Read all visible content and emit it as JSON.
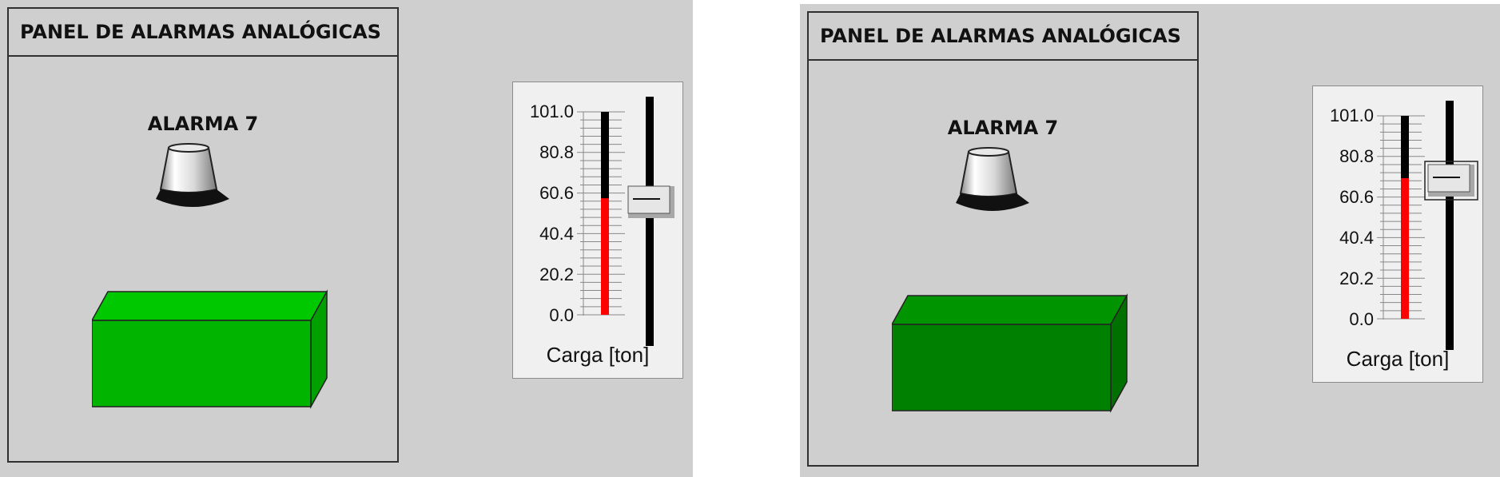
{
  "screens": [
    {
      "panel_title": "PANEL DE ALARMAS ANALÓGICAS",
      "alarm_label": "ALARMA 7",
      "box_color": "#00b400",
      "box_top_color": "#00c800",
      "box_side_color": "#00a000",
      "slider": {
        "ticks": [
          "101.0",
          "80.8",
          "60.6",
          "40.4",
          "20.2",
          "0.0"
        ],
        "caption": "Carga [ton]",
        "min": 0.0,
        "max": 101.0,
        "value": 58,
        "fill_color": "#ff0000",
        "thumb_selected": false
      }
    },
    {
      "panel_title": "PANEL DE ALARMAS ANALÓGICAS",
      "alarm_label": "ALARMA 7",
      "box_color": "#008000",
      "box_top_color": "#009400",
      "box_side_color": "#007000",
      "slider": {
        "ticks": [
          "101.0",
          "80.8",
          "60.6",
          "40.4",
          "20.2",
          "0.0"
        ],
        "caption": "Carga [ton]",
        "min": 0.0,
        "max": 101.0,
        "value": 70,
        "fill_color": "#ff0000",
        "thumb_selected": true
      }
    }
  ]
}
